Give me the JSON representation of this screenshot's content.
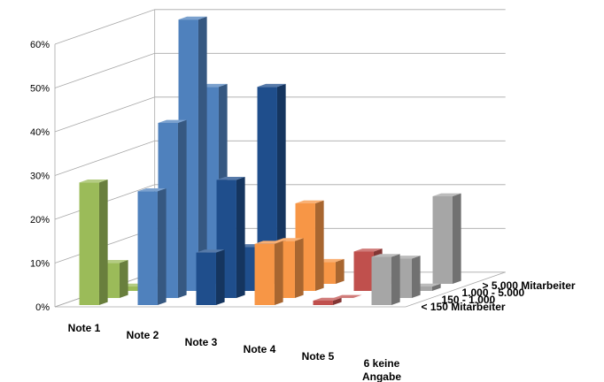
{
  "chart_data": {
    "type": "bar",
    "variant": "3d-clustered-depth",
    "y_ticks": [
      "0%",
      "10%",
      "20%",
      "30%",
      "40%",
      "50%",
      "60%"
    ],
    "ylim": [
      0,
      60
    ],
    "grid": true,
    "legend_placement": "right-depth-axis",
    "categories": [
      "Note 1",
      "Note 2",
      "Note 3",
      "Note 4",
      "Note 5",
      "6 keine Angabe"
    ],
    "series": [
      {
        "name": "< 150 Mitarbeiter",
        "values": [
          28,
          26,
          12,
          14,
          1,
          11
        ]
      },
      {
        "name": "150 - 1.000",
        "values": [
          8,
          40,
          27,
          13,
          0,
          9
        ]
      },
      {
        "name": "1.000 - 5.000",
        "values": [
          1,
          62,
          10,
          20,
          9,
          1
        ]
      },
      {
        "name": "> 5.000 Mitarbeiter",
        "values": [
          1,
          45,
          45,
          5,
          1,
          20
        ]
      }
    ],
    "colors": {
      "Note 1": "#9bbb59",
      "Note 2": "#4f81bd",
      "Note 3": "#1f4e8c",
      "Note 4": "#f79646",
      "Note 5": "#c0504d",
      "6 keine Angabe": "#a6a6a6"
    }
  }
}
